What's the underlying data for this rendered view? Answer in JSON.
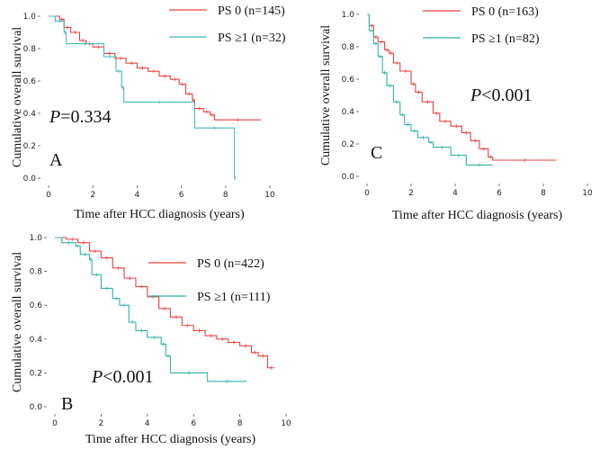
{
  "chart_data": [
    {
      "type": "line",
      "panel_label": "A",
      "annotation": {
        "p_symbol": "P",
        "p_text": "=0.334"
      },
      "xlabel": "Time after HCC diagnosis (years)",
      "ylabel": "Cumulative overall survival",
      "xlim": [
        0,
        10
      ],
      "ylim": [
        0,
        1
      ],
      "xticks": [
        "0",
        "2",
        "4",
        "6",
        "8",
        "10"
      ],
      "yticks": [
        "0.0",
        "0.2",
        "0.4",
        "0.6",
        "0.8",
        "1.0"
      ],
      "grid": false,
      "legend": "top-right",
      "step": true,
      "series": [
        {
          "name": "PS 0 (n=145)",
          "color": "#e8403f",
          "points": [
            [
              0,
              1
            ],
            [
              0.5,
              0.98
            ],
            [
              0.7,
              0.93
            ],
            [
              1,
              0.9
            ],
            [
              1.4,
              0.85
            ],
            [
              1.7,
              0.83
            ],
            [
              2,
              0.81
            ],
            [
              2.5,
              0.77
            ],
            [
              3,
              0.74
            ],
            [
              3.5,
              0.71
            ],
            [
              4,
              0.68
            ],
            [
              4.5,
              0.66
            ],
            [
              5,
              0.63
            ],
            [
              5.5,
              0.61
            ],
            [
              5.9,
              0.58
            ],
            [
              6.2,
              0.52
            ],
            [
              6.5,
              0.48
            ],
            [
              6.6,
              0.43
            ],
            [
              7,
              0.41
            ],
            [
              7.3,
              0.39
            ],
            [
              7.5,
              0.36
            ],
            [
              9.6,
              0.36
            ]
          ]
        },
        {
          "name": "PS ≥1 (n=32)",
          "color": "#45b8c0",
          "points": [
            [
              0,
              1
            ],
            [
              0.3,
              0.97
            ],
            [
              0.7,
              0.9
            ],
            [
              0.8,
              0.83
            ],
            [
              2.5,
              0.75
            ],
            [
              3.05,
              0.66
            ],
            [
              3.3,
              0.56
            ],
            [
              3.4,
              0.47
            ],
            [
              6.6,
              0.31
            ],
            [
              8.4,
              0.0
            ],
            [
              8.45,
              0.0
            ]
          ]
        }
      ]
    },
    {
      "type": "line",
      "panel_label": "C",
      "annotation": {
        "p_symbol": "P",
        "p_text": "<0.001"
      },
      "xlabel": "Time after HCC diagnosis (years)",
      "ylabel": "Cumulative overall survival",
      "xlim": [
        0,
        10
      ],
      "ylim": [
        0,
        1
      ],
      "xticks": [
        "0",
        "2",
        "4",
        "6",
        "8",
        "10"
      ],
      "yticks": [
        "0.0",
        "0.2",
        "0.4",
        "0.6",
        "0.8",
        "1.0"
      ],
      "grid": false,
      "legend": "top-right",
      "step": true,
      "series": [
        {
          "name": "PS 0 (n=163)",
          "color": "#e8403f",
          "points": [
            [
              0,
              1
            ],
            [
              0.1,
              0.93
            ],
            [
              0.3,
              0.86
            ],
            [
              0.5,
              0.83
            ],
            [
              0.8,
              0.78
            ],
            [
              1,
              0.76
            ],
            [
              1.2,
              0.7
            ],
            [
              1.5,
              0.65
            ],
            [
              2,
              0.57
            ],
            [
              2.2,
              0.52
            ],
            [
              2.5,
              0.46
            ],
            [
              3,
              0.39
            ],
            [
              3.3,
              0.34
            ],
            [
              3.8,
              0.31
            ],
            [
              4.3,
              0.27
            ],
            [
              4.7,
              0.22
            ],
            [
              5.1,
              0.17
            ],
            [
              5.5,
              0.12
            ],
            [
              5.7,
              0.1
            ],
            [
              8.6,
              0.1
            ]
          ]
        },
        {
          "name": "PS ≥1 (n=82)",
          "color": "#2fb3a8",
          "points": [
            [
              0,
              1
            ],
            [
              0.1,
              0.9
            ],
            [
              0.3,
              0.82
            ],
            [
              0.5,
              0.74
            ],
            [
              0.7,
              0.64
            ],
            [
              0.9,
              0.56
            ],
            [
              1.2,
              0.46
            ],
            [
              1.5,
              0.38
            ],
            [
              1.7,
              0.32
            ],
            [
              2,
              0.28
            ],
            [
              2.3,
              0.24
            ],
            [
              2.8,
              0.21
            ],
            [
              3,
              0.18
            ],
            [
              3.8,
              0.13
            ],
            [
              4.5,
              0.07
            ],
            [
              5.7,
              0.07
            ]
          ]
        }
      ]
    },
    {
      "type": "line",
      "panel_label": "B",
      "annotation": {
        "p_symbol": "P",
        "p_text": "<0.001"
      },
      "xlabel": "Time after HCC diagnosis (years)",
      "ylabel": "Cumulative overall survival",
      "xlim": [
        0,
        10
      ],
      "ylim": [
        0,
        1
      ],
      "xticks": [
        "0",
        "2",
        "4",
        "6",
        "8",
        "10"
      ],
      "yticks": [
        "0.0",
        "0.2",
        "0.4",
        "0.6",
        "0.8",
        "1.0"
      ],
      "grid": false,
      "legend": "top-right",
      "step": true,
      "series": [
        {
          "name": "PS 0 (n=422)",
          "color": "#e8403f",
          "points": [
            [
              0,
              1
            ],
            [
              0.5,
              0.99
            ],
            [
              1,
              0.97
            ],
            [
              1.5,
              0.92
            ],
            [
              2,
              0.88
            ],
            [
              2.5,
              0.82
            ],
            [
              3,
              0.76
            ],
            [
              3.5,
              0.71
            ],
            [
              4,
              0.65
            ],
            [
              4.5,
              0.58
            ],
            [
              5,
              0.53
            ],
            [
              5.5,
              0.48
            ],
            [
              6,
              0.45
            ],
            [
              6.5,
              0.42
            ],
            [
              7,
              0.4
            ],
            [
              7.5,
              0.38
            ],
            [
              8,
              0.36
            ],
            [
              8.5,
              0.32
            ],
            [
              8.8,
              0.3
            ],
            [
              9.2,
              0.23
            ],
            [
              9.5,
              0.23
            ]
          ]
        },
        {
          "name": "PS ≥1 (n=111)",
          "color": "#2fb3a8",
          "points": [
            [
              0,
              1
            ],
            [
              0.3,
              0.97
            ],
            [
              0.9,
              0.95
            ],
            [
              1.1,
              0.9
            ],
            [
              1.5,
              0.87
            ],
            [
              1.6,
              0.78
            ],
            [
              2,
              0.7
            ],
            [
              2.5,
              0.64
            ],
            [
              2.8,
              0.6
            ],
            [
              3.2,
              0.5
            ],
            [
              3.5,
              0.45
            ],
            [
              4,
              0.41
            ],
            [
              4.6,
              0.37
            ],
            [
              4.8,
              0.3
            ],
            [
              5,
              0.2
            ],
            [
              6.6,
              0.15
            ],
            [
              8.3,
              0.15
            ]
          ]
        }
      ]
    }
  ]
}
